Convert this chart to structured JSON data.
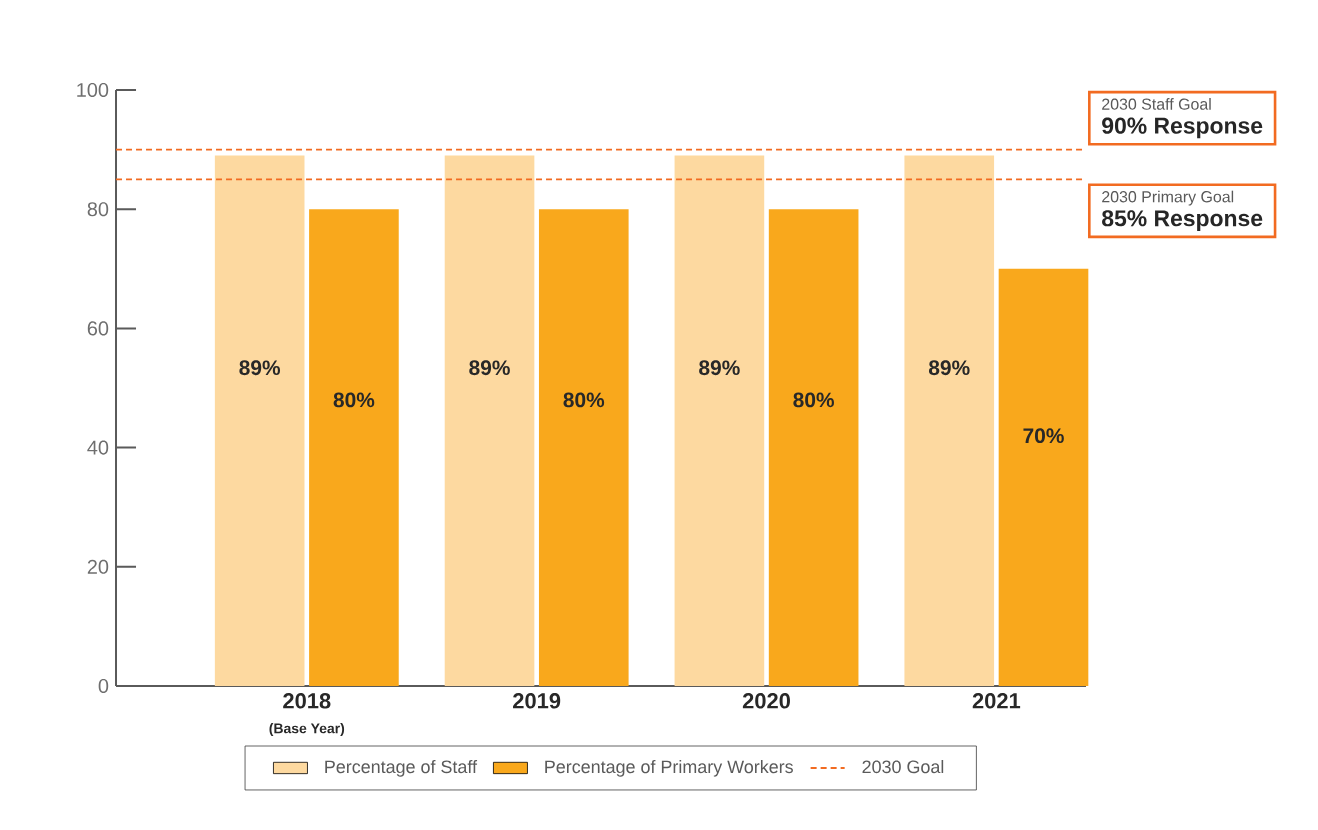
{
  "chart_data": {
    "type": "bar",
    "categories": [
      "2018",
      "2019",
      "2020",
      "2021"
    ],
    "series": [
      {
        "name": "Percentage of Staff",
        "color": "#fdd9a0",
        "values": [
          89,
          89,
          89,
          89
        ],
        "value_labels": [
          "89%",
          "89%",
          "89%",
          "89%"
        ]
      },
      {
        "name": "Percentage of Primary Workers",
        "color": "#f9a81c",
        "values": [
          80,
          80,
          80,
          70
        ],
        "value_labels": [
          "80%",
          "80%",
          "80%",
          "70%"
        ]
      }
    ],
    "ylim": [
      0,
      100
    ],
    "yticks": [
      0,
      20,
      40,
      60,
      80,
      100
    ],
    "grid": false,
    "legend": "bottom",
    "ref_lines": [
      {
        "axis": "y",
        "value": 90,
        "label": "2030 Staff Goal",
        "color": "#f26b21",
        "line_style": "dashed"
      },
      {
        "axis": "y",
        "value": 85,
        "label": "2030 Primary Goal",
        "color": "#f26b21",
        "line_style": "dashed"
      }
    ],
    "annotations": [
      "(Base Year)",
      "2030 Goal",
      "90% Response",
      "85% Response"
    ]
  }
}
